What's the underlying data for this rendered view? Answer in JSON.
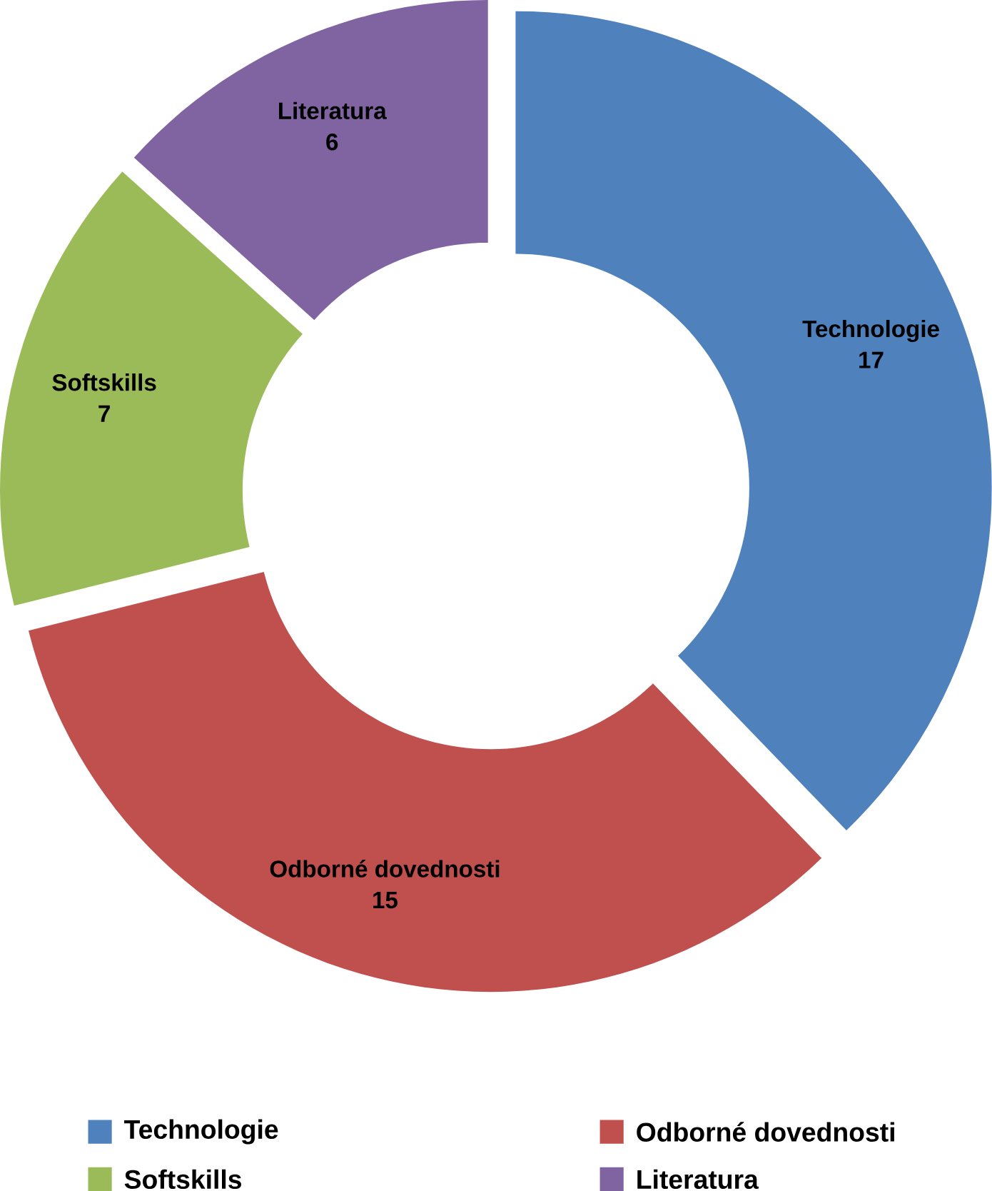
{
  "chart_data": {
    "type": "donut",
    "categories": [
      "Technologie",
      "Odborné dovednosti",
      "Softskills",
      "Literatura"
    ],
    "values": [
      17,
      15,
      7,
      6
    ],
    "colors": [
      "#4f81bd",
      "#c0504d",
      "#9bbb59",
      "#8064a2"
    ],
    "data_labels": true,
    "legend": "bottom"
  }
}
